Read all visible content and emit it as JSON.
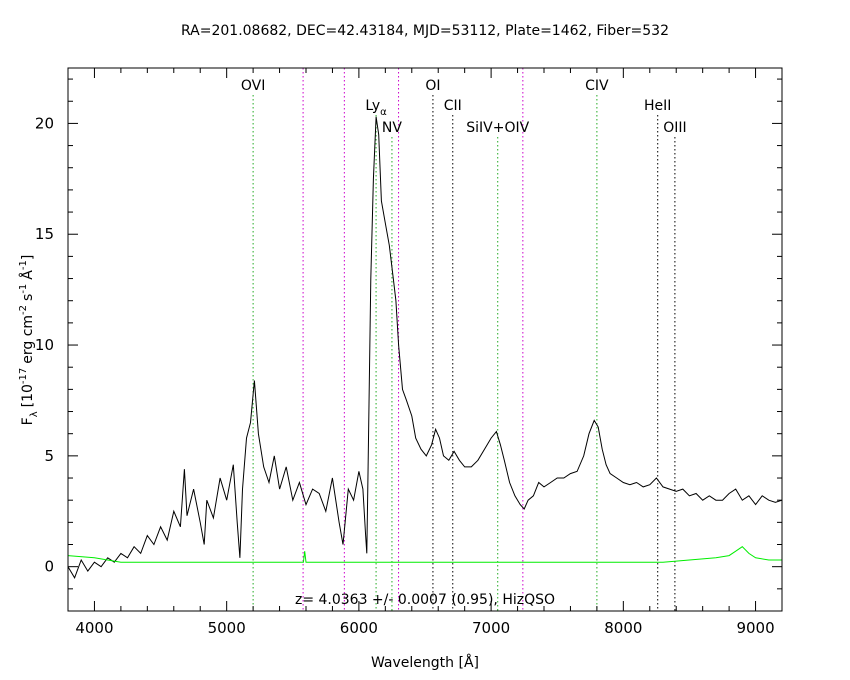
{
  "chart_data": {
    "type": "line",
    "title": "RA=201.08682, DEC=42.43184, MJD=53112, Plate=1462, Fiber=532",
    "xlabel": "Wavelength [Å]",
    "ylabel_parts": {
      "f": "F",
      "lambda": "λ",
      "open": "[10",
      "exp1": "-17",
      "erg": "erg cm",
      "exp2": "-2",
      "s": "s",
      "exp3": "-1",
      "ang": "Å",
      "exp4": "-1",
      "close": "]"
    },
    "xlim": [
      3800,
      9200
    ],
    "ylim": [
      -2,
      22.5
    ],
    "x_ticks": [
      4000,
      5000,
      6000,
      7000,
      8000,
      9000
    ],
    "y_ticks": [
      0,
      5,
      10,
      15,
      20
    ],
    "annotation": "z= 4.0363 +/- 0.0007 (0.95), HizQSO",
    "series": [
      {
        "color": "#000000",
        "points": [
          [
            3800,
            0
          ],
          [
            3850,
            -0.5
          ],
          [
            3900,
            0.3
          ],
          [
            3950,
            -0.2
          ],
          [
            4000,
            0.2
          ],
          [
            4050,
            0
          ],
          [
            4100,
            0.4
          ],
          [
            4150,
            0.2
          ],
          [
            4200,
            0.6
          ],
          [
            4250,
            0.4
          ],
          [
            4300,
            0.9
          ],
          [
            4350,
            0.6
          ],
          [
            4400,
            1.4
          ],
          [
            4450,
            1.0
          ],
          [
            4500,
            1.8
          ],
          [
            4550,
            1.2
          ],
          [
            4600,
            2.5
          ],
          [
            4650,
            1.8
          ],
          [
            4680,
            4.4
          ],
          [
            4700,
            2.3
          ],
          [
            4750,
            3.5
          ],
          [
            4800,
            2.0
          ],
          [
            4830,
            1.0
          ],
          [
            4850,
            3.0
          ],
          [
            4900,
            2.2
          ],
          [
            4950,
            4.0
          ],
          [
            5000,
            3.0
          ],
          [
            5050,
            4.6
          ],
          [
            5080,
            2.0
          ],
          [
            5100,
            0.4
          ],
          [
            5120,
            3.5
          ],
          [
            5150,
            5.8
          ],
          [
            5180,
            6.5
          ],
          [
            5210,
            8.4
          ],
          [
            5240,
            6.0
          ],
          [
            5280,
            4.5
          ],
          [
            5320,
            3.8
          ],
          [
            5360,
            5.0
          ],
          [
            5400,
            3.5
          ],
          [
            5450,
            4.5
          ],
          [
            5500,
            3.0
          ],
          [
            5550,
            3.8
          ],
          [
            5600,
            2.8
          ],
          [
            5650,
            3.5
          ],
          [
            5700,
            3.3
          ],
          [
            5750,
            2.5
          ],
          [
            5800,
            4.0
          ],
          [
            5850,
            2.0
          ],
          [
            5880,
            1.0
          ],
          [
            5920,
            3.5
          ],
          [
            5960,
            3.0
          ],
          [
            6000,
            4.3
          ],
          [
            6030,
            3.5
          ],
          [
            6050,
            1.5
          ],
          [
            6060,
            0.6
          ],
          [
            6070,
            4.5
          ],
          [
            6090,
            13.0
          ],
          [
            6110,
            17.5
          ],
          [
            6130,
            20.3
          ],
          [
            6150,
            19.5
          ],
          [
            6170,
            16.5
          ],
          [
            6200,
            15.5
          ],
          [
            6230,
            14.5
          ],
          [
            6260,
            13.0
          ],
          [
            6280,
            12.0
          ],
          [
            6300,
            10.0
          ],
          [
            6330,
            8.0
          ],
          [
            6360,
            7.5
          ],
          [
            6400,
            6.8
          ],
          [
            6430,
            5.8
          ],
          [
            6470,
            5.3
          ],
          [
            6510,
            5.0
          ],
          [
            6550,
            5.5
          ],
          [
            6580,
            6.2
          ],
          [
            6610,
            5.8
          ],
          [
            6640,
            5.0
          ],
          [
            6680,
            4.8
          ],
          [
            6720,
            5.2
          ],
          [
            6760,
            4.8
          ],
          [
            6800,
            4.5
          ],
          [
            6850,
            4.5
          ],
          [
            6900,
            4.8
          ],
          [
            6950,
            5.3
          ],
          [
            7000,
            5.8
          ],
          [
            7040,
            6.1
          ],
          [
            7070,
            5.5
          ],
          [
            7100,
            4.8
          ],
          [
            7140,
            3.8
          ],
          [
            7180,
            3.2
          ],
          [
            7220,
            2.8
          ],
          [
            7250,
            2.6
          ],
          [
            7280,
            3.0
          ],
          [
            7320,
            3.2
          ],
          [
            7360,
            3.8
          ],
          [
            7400,
            3.6
          ],
          [
            7450,
            3.8
          ],
          [
            7500,
            4.0
          ],
          [
            7550,
            4.0
          ],
          [
            7600,
            4.2
          ],
          [
            7650,
            4.3
          ],
          [
            7700,
            5.0
          ],
          [
            7740,
            6.0
          ],
          [
            7780,
            6.6
          ],
          [
            7810,
            6.3
          ],
          [
            7840,
            5.3
          ],
          [
            7870,
            4.6
          ],
          [
            7900,
            4.2
          ],
          [
            7950,
            4.0
          ],
          [
            8000,
            3.8
          ],
          [
            8050,
            3.7
          ],
          [
            8100,
            3.8
          ],
          [
            8150,
            3.6
          ],
          [
            8200,
            3.7
          ],
          [
            8250,
            4.0
          ],
          [
            8300,
            3.6
          ],
          [
            8350,
            3.5
          ],
          [
            8400,
            3.4
          ],
          [
            8450,
            3.5
          ],
          [
            8500,
            3.2
          ],
          [
            8550,
            3.3
          ],
          [
            8600,
            3.0
          ],
          [
            8650,
            3.2
          ],
          [
            8700,
            3.0
          ],
          [
            8750,
            3.0
          ],
          [
            8800,
            3.3
          ],
          [
            8850,
            3.5
          ],
          [
            8900,
            3.0
          ],
          [
            8950,
            3.2
          ],
          [
            9000,
            2.8
          ],
          [
            9050,
            3.2
          ],
          [
            9100,
            3.0
          ],
          [
            9150,
            2.9
          ],
          [
            9200,
            3.0
          ]
        ]
      },
      {
        "color": "#00ee00",
        "points": [
          [
            3800,
            0.5
          ],
          [
            4000,
            0.4
          ],
          [
            4200,
            0.2
          ],
          [
            4500,
            0.2
          ],
          [
            5000,
            0.2
          ],
          [
            5500,
            0.2
          ],
          [
            5580,
            0.2
          ],
          [
            5590,
            0.7
          ],
          [
            5600,
            0.2
          ],
          [
            6000,
            0.2
          ],
          [
            6500,
            0.2
          ],
          [
            7000,
            0.2
          ],
          [
            7500,
            0.2
          ],
          [
            8000,
            0.2
          ],
          [
            8300,
            0.2
          ],
          [
            8500,
            0.3
          ],
          [
            8700,
            0.4
          ],
          [
            8800,
            0.5
          ],
          [
            8850,
            0.7
          ],
          [
            8900,
            0.9
          ],
          [
            8950,
            0.6
          ],
          [
            9000,
            0.4
          ],
          [
            9100,
            0.3
          ],
          [
            9200,
            0.3
          ]
        ]
      }
    ],
    "emission_lines": [
      {
        "label": "OVI",
        "x": 5200,
        "color": "#22aa22",
        "label_row": 0
      },
      {
        "label": "Ly",
        "sub": "α",
        "x": 6130,
        "color": "#22aa22",
        "label_row": 1
      },
      {
        "label": "NV",
        "x": 6250,
        "color": "#22aa22",
        "label_row": 2
      },
      {
        "label": "OI",
        "x": 6560,
        "color": "#000000",
        "label_row": 0
      },
      {
        "label": "CII",
        "x": 6710,
        "color": "#000000",
        "label_row": 1
      },
      {
        "label": "SiIV+OIV",
        "x": 7050,
        "color": "#22aa22",
        "label_row": 2
      },
      {
        "label": "CIV",
        "x": 7800,
        "color": "#22aa22",
        "label_row": 0
      },
      {
        "label": "HeII",
        "x": 8260,
        "color": "#000000",
        "label_row": 1
      },
      {
        "label": "OIII",
        "x": 8390,
        "color": "#000000",
        "label_row": 2
      }
    ],
    "sky_lines": [
      {
        "x": 5578,
        "color": "#cc00cc"
      },
      {
        "x": 5890,
        "color": "#cc00cc"
      },
      {
        "x": 6300,
        "color": "#cc00cc"
      },
      {
        "x": 7240,
        "color": "#cc00cc"
      }
    ]
  }
}
